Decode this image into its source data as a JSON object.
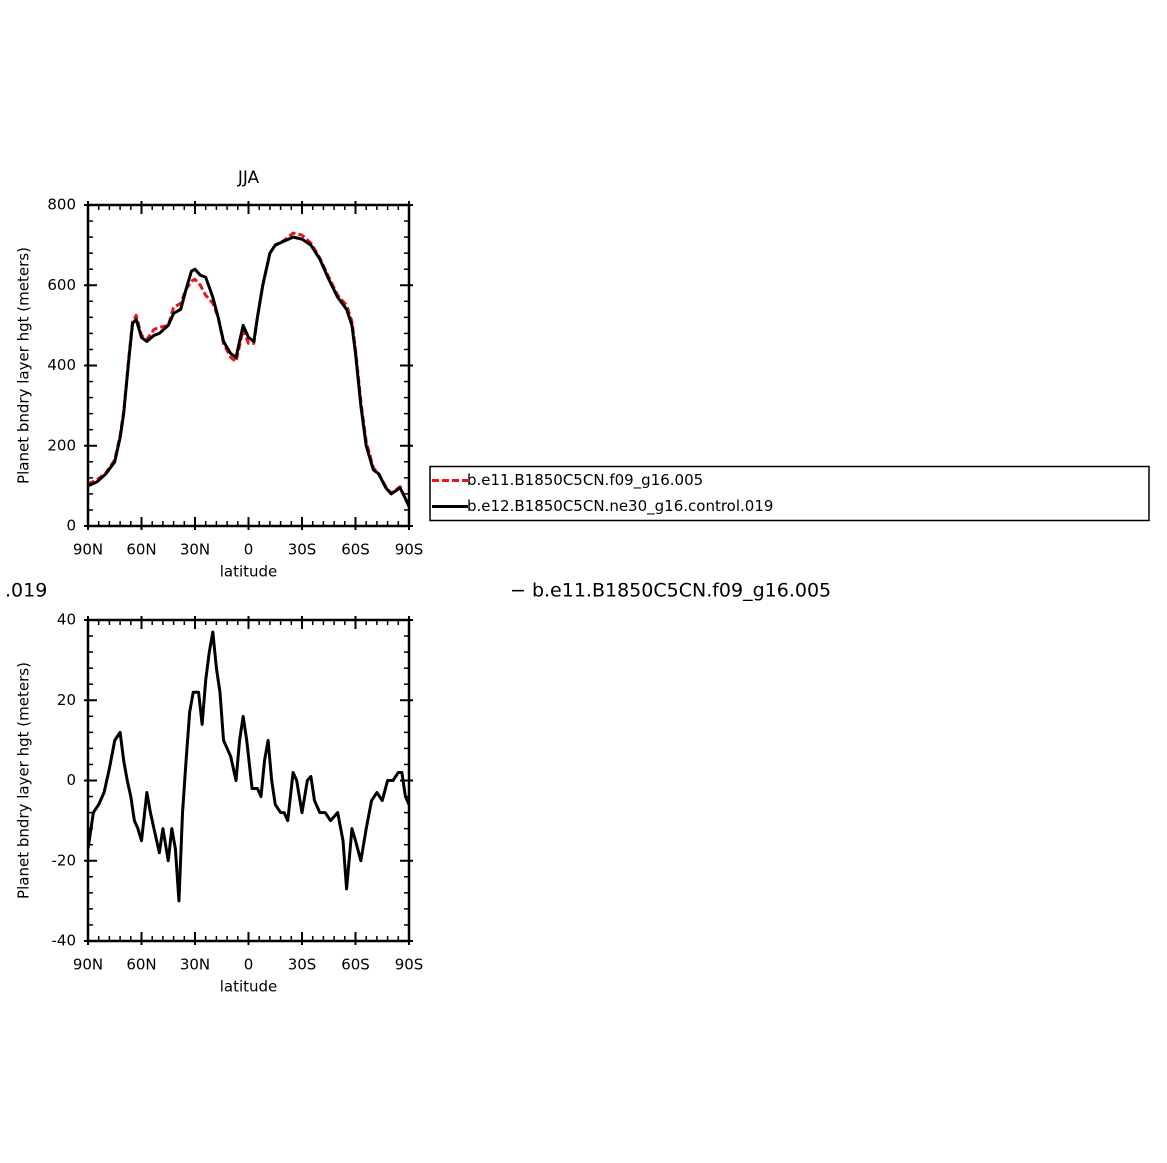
{
  "chart_data": [
    {
      "type": "line",
      "title": "JJA",
      "xlabel": "latitude",
      "ylabel": "Planet bndry layer hgt (meters)",
      "x": [
        90,
        85,
        80,
        75,
        72,
        70,
        67,
        65,
        63,
        60,
        57,
        53,
        50,
        45,
        42,
        38,
        35,
        32,
        30,
        27,
        24,
        20,
        17,
        14,
        10,
        7,
        5,
        3,
        0,
        -3,
        -5,
        -8,
        -12,
        -15,
        -20,
        -25,
        -30,
        -35,
        -40,
        -45,
        -50,
        -55,
        -58,
        -60,
        -63,
        -66,
        -70,
        -73,
        -77,
        -80,
        -85,
        -90
      ],
      "series": [
        {
          "name": "b.e11.B1850C5CN.f09_g16.005",
          "color": "#e8161b",
          "linestyle": "dashed",
          "values": [
            105,
            115,
            132,
            165,
            225,
            285,
            425,
            510,
            525,
            475,
            465,
            490,
            495,
            500,
            545,
            555,
            590,
            610,
            615,
            600,
            575,
            555,
            520,
            455,
            420,
            410,
            450,
            490,
            455,
            455,
            520,
            600,
            680,
            700,
            712,
            730,
            725,
            705,
            668,
            620,
            575,
            550,
            510,
            440,
            310,
            210,
            145,
            130,
            98,
            82,
            98,
            48
          ]
        },
        {
          "name": "b.e12.B1850C5CN.ne30_g16.control.019",
          "color": "#000000",
          "linestyle": "solid",
          "values": [
            100,
            110,
            130,
            160,
            220,
            280,
            420,
            505,
            515,
            470,
            460,
            475,
            480,
            500,
            530,
            540,
            590,
            635,
            640,
            625,
            620,
            570,
            520,
            460,
            430,
            420,
            460,
            500,
            470,
            460,
            520,
            600,
            680,
            700,
            710,
            720,
            715,
            700,
            665,
            615,
            570,
            540,
            500,
            430,
            300,
            200,
            140,
            130,
            95,
            80,
            95,
            50
          ]
        }
      ],
      "xlim": [
        90,
        -90
      ],
      "xticks": [
        {
          "value": 90,
          "label": "90N"
        },
        {
          "value": 60,
          "label": "60N"
        },
        {
          "value": 30,
          "label": "30N"
        },
        0,
        {
          "value": -30,
          "label": "30S"
        },
        {
          "value": -60,
          "label": "60S"
        },
        {
          "value": -90,
          "label": "90S"
        }
      ],
      "ylim": [
        0,
        800
      ],
      "yticks": [
        0,
        200,
        400,
        600,
        800
      ],
      "legend": "right"
    },
    {
      "type": "line",
      "xlabel": "latitude",
      "ylabel": "Planet bndry layer hgt (meters)",
      "annotations": [
        ".019",
        "− b.e11.B1850C5CN.f09_g16.005"
      ],
      "x": [
        90,
        87,
        84,
        81,
        78,
        75,
        72,
        70,
        68,
        66,
        64,
        62,
        60,
        57,
        55,
        53,
        50,
        48,
        45,
        43,
        41,
        39,
        37,
        35,
        33,
        31,
        28,
        26,
        24,
        22,
        20,
        18,
        16,
        14,
        12,
        10,
        7,
        5,
        3,
        1,
        -2,
        -5,
        -7,
        -9,
        -11,
        -13,
        -15,
        -18,
        -20,
        -22,
        -25,
        -27,
        -30,
        -33,
        -35,
        -37,
        -40,
        -43,
        -46,
        -50,
        -53,
        -55,
        -58,
        -60,
        -63,
        -66,
        -69,
        -72,
        -75,
        -78,
        -81,
        -84,
        -86,
        -88,
        -90
      ],
      "values": [
        -17,
        -8,
        -6,
        -3,
        3,
        10,
        12,
        5,
        0,
        -4,
        -10,
        -12,
        -15,
        -3,
        -8,
        -12,
        -18,
        -12,
        -20,
        -12,
        -17,
        -30,
        -8,
        5,
        17,
        22,
        22,
        14,
        25,
        32,
        37,
        28,
        22,
        10,
        8,
        6,
        0,
        10,
        16,
        10,
        -2,
        -2,
        -4,
        5,
        10,
        0,
        -6,
        -8,
        -8,
        -10,
        2,
        0,
        -8,
        0,
        1,
        -5,
        -8,
        -8,
        -10,
        -8,
        -15,
        -27,
        -12,
        -15,
        -20,
        -12,
        -5,
        -3,
        -5,
        0,
        0,
        2,
        2,
        -4,
        -6
      ],
      "color": "#000000",
      "linestyle": "solid",
      "xlim": [
        90,
        -90
      ],
      "xticks": [
        {
          "value": 90,
          "label": "90N"
        },
        {
          "value": 60,
          "label": "60N"
        },
        {
          "value": 30,
          "label": "30N"
        },
        0,
        {
          "value": -30,
          "label": "30S"
        },
        {
          "value": -60,
          "label": "60S"
        },
        {
          "value": -90,
          "label": "90S"
        }
      ],
      "ylim": [
        -40,
        40
      ],
      "yticks": [
        -40,
        -20,
        0,
        20,
        40
      ]
    }
  ]
}
